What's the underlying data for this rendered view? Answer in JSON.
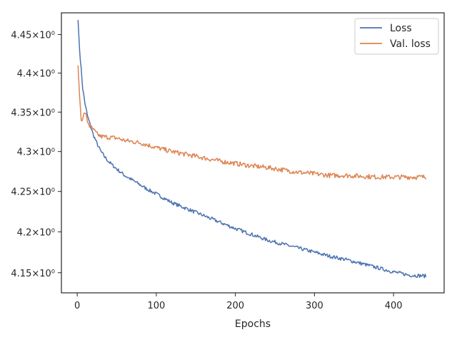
{
  "chart_data": {
    "type": "line",
    "title": "",
    "xlabel": "Epochs",
    "ylabel": "",
    "xlim": [
      -20,
      464
    ],
    "ylim": [
      4.1256,
      4.4784
    ],
    "y_scale": "log",
    "x_ticks": [
      0,
      100,
      200,
      300,
      400
    ],
    "y_ticks": [
      {
        "value": 4.15,
        "label": "4.15×10⁰"
      },
      {
        "value": 4.2,
        "label": "4.2×10⁰"
      },
      {
        "value": 4.25,
        "label": "4.25×10⁰"
      },
      {
        "value": 4.3,
        "label": "4.3×10⁰"
      },
      {
        "value": 4.35,
        "label": "4.35×10⁰"
      },
      {
        "value": 4.4,
        "label": "4.4×10⁰"
      },
      {
        "value": 4.45,
        "label": "4.45×10⁰"
      }
    ],
    "grid": false,
    "legend_position": "top-right",
    "series": [
      {
        "name": "Loss",
        "color": "#4c72b0",
        "x": [
          1,
          3,
          5,
          7,
          10,
          13,
          16,
          20,
          25,
          30,
          35,
          40,
          50,
          60,
          70,
          80,
          90,
          100,
          120,
          140,
          160,
          180,
          200,
          220,
          240,
          260,
          280,
          300,
          320,
          340,
          360,
          380,
          400,
          420,
          441
        ],
        "y": [
          4.469,
          4.43,
          4.405,
          4.38,
          4.36,
          4.345,
          4.335,
          4.322,
          4.31,
          4.3,
          4.293,
          4.287,
          4.278,
          4.27,
          4.264,
          4.258,
          4.252,
          4.247,
          4.236,
          4.228,
          4.22,
          4.212,
          4.204,
          4.197,
          4.19,
          4.185,
          4.18,
          4.175,
          4.17,
          4.166,
          4.161,
          4.156,
          4.151,
          4.147,
          4.146
        ]
      },
      {
        "name": "Val. loss",
        "color": "#dd8452",
        "x": [
          1,
          3,
          5,
          8,
          10,
          13,
          16,
          20,
          25,
          30,
          40,
          50,
          60,
          80,
          100,
          120,
          140,
          160,
          180,
          200,
          220,
          240,
          260,
          280,
          300,
          320,
          340,
          360,
          380,
          400,
          420,
          441
        ],
        "y": [
          4.41,
          4.37,
          4.34,
          4.345,
          4.35,
          4.338,
          4.332,
          4.328,
          4.322,
          4.319,
          4.318,
          4.317,
          4.314,
          4.311,
          4.305,
          4.3,
          4.296,
          4.292,
          4.288,
          4.285,
          4.282,
          4.28,
          4.277,
          4.274,
          4.272,
          4.27,
          4.27,
          4.269,
          4.268,
          4.268,
          4.268,
          4.268
        ]
      }
    ]
  }
}
